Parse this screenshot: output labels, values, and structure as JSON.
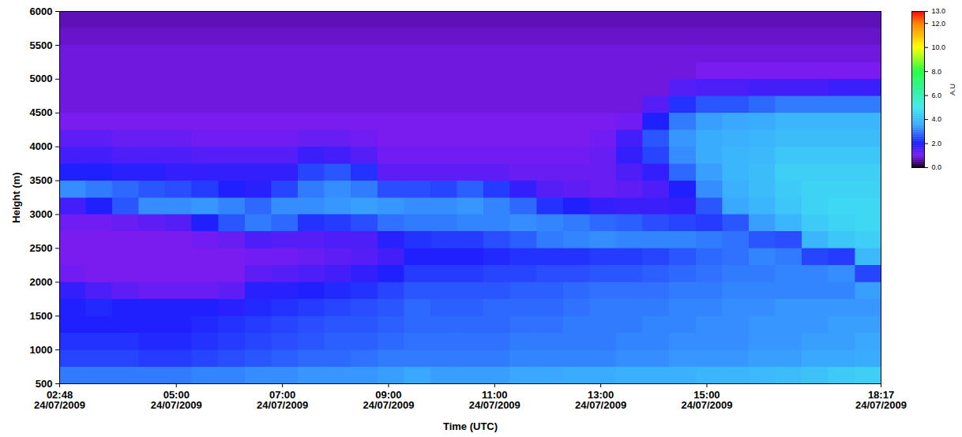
{
  "chart_data": {
    "type": "heatmap",
    "x_label": "Time (UTC)",
    "y_label": "Height (m)",
    "xlim": [
      "2009-07-24T02:48",
      "2009-07-24T18:17"
    ],
    "xticks": [
      {
        "value": "2009-07-24T02:48",
        "label": "02:48\n24/07/2009"
      },
      {
        "value": "2009-07-24T05:00",
        "label": "05:00\n24/07/2009"
      },
      {
        "value": "2009-07-24T07:00",
        "label": "07:00\n24/07/2009"
      },
      {
        "value": "2009-07-24T09:00",
        "label": "09:00\n24/07/2009"
      },
      {
        "value": "2009-07-24T11:00",
        "label": "11:00\n24/07/2009"
      },
      {
        "value": "2009-07-24T13:00",
        "label": "13:00\n24/07/2009"
      },
      {
        "value": "2009-07-24T15:00",
        "label": "15:00\n24/07/2009"
      },
      {
        "value": "2009-07-24T18:17",
        "label": "18:17\n24/07/2009"
      }
    ],
    "ylim": [
      500,
      6000
    ],
    "yticks": [
      500,
      1000,
      1500,
      2000,
      2500,
      3000,
      3500,
      4000,
      4500,
      5000,
      5500,
      6000
    ],
    "x": [
      "2009-07-24T02:48",
      "2009-07-24T03:18",
      "2009-07-24T03:48",
      "2009-07-24T04:18",
      "2009-07-24T04:48",
      "2009-07-24T05:18",
      "2009-07-24T05:48",
      "2009-07-24T06:18",
      "2009-07-24T06:48",
      "2009-07-24T07:18",
      "2009-07-24T07:48",
      "2009-07-24T08:18",
      "2009-07-24T08:48",
      "2009-07-24T09:18",
      "2009-07-24T09:48",
      "2009-07-24T10:18",
      "2009-07-24T10:48",
      "2009-07-24T11:18",
      "2009-07-24T11:48",
      "2009-07-24T12:18",
      "2009-07-24T12:48",
      "2009-07-24T13:18",
      "2009-07-24T13:48",
      "2009-07-24T14:18",
      "2009-07-24T14:48",
      "2009-07-24T15:18",
      "2009-07-24T15:48",
      "2009-07-24T16:18",
      "2009-07-24T16:48",
      "2009-07-24T17:18",
      "2009-07-24T17:48"
    ],
    "y": [
      500,
      750,
      1000,
      1250,
      1500,
      1750,
      2000,
      2250,
      2500,
      2750,
      3000,
      3250,
      3500,
      3750,
      4000,
      4250,
      4500,
      4750,
      5000,
      5250,
      5500,
      5750
    ],
    "cells": [
      [
        3.0,
        2.4,
        2.2,
        2.0,
        2.0,
        1.8,
        1.1,
        1.0,
        1.0,
        1.1,
        1.6,
        3.2,
        2.0,
        1.6,
        1.3,
        1.0,
        0.9,
        0.9,
        0.9,
        0.9,
        0.8,
        0.7
      ],
      [
        3.0,
        2.4,
        2.2,
        2.0,
        2.1,
        1.5,
        1.0,
        1.0,
        1.0,
        1.1,
        2.0,
        3.0,
        2.0,
        1.6,
        1.3,
        1.0,
        0.9,
        0.9,
        0.9,
        0.9,
        0.8,
        0.7
      ],
      [
        3.0,
        2.4,
        2.2,
        2.0,
        2.0,
        1.3,
        1.0,
        1.0,
        1.0,
        1.2,
        2.6,
        2.8,
        1.9,
        1.5,
        1.2,
        1.0,
        0.9,
        0.9,
        0.9,
        0.9,
        0.8,
        0.7
      ],
      [
        3.0,
        2.3,
        2.1,
        2.0,
        2.0,
        1.2,
        1.0,
        1.0,
        1.0,
        1.3,
        3.2,
        2.6,
        1.9,
        1.5,
        1.2,
        1.0,
        0.9,
        0.9,
        0.9,
        0.9,
        0.8,
        0.7
      ],
      [
        3.0,
        2.3,
        2.1,
        2.0,
        2.0,
        1.2,
        1.0,
        1.0,
        1.0,
        1.4,
        3.2,
        2.5,
        1.8,
        1.5,
        1.2,
        1.0,
        0.9,
        0.9,
        0.9,
        0.9,
        0.8,
        0.7
      ],
      [
        3.1,
        2.4,
        2.2,
        2.1,
        2.0,
        1.2,
        1.0,
        1.0,
        1.1,
        2.0,
        3.3,
        2.3,
        1.8,
        1.4,
        1.1,
        1.0,
        0.9,
        0.9,
        0.9,
        0.9,
        0.8,
        0.7
      ],
      [
        3.1,
        2.5,
        2.3,
        2.2,
        1.9,
        1.3,
        1.0,
        1.0,
        1.2,
        2.6,
        3.1,
        2.0,
        1.8,
        1.4,
        1.1,
        1.0,
        0.9,
        0.9,
        0.9,
        0.9,
        0.8,
        0.7
      ],
      [
        3.2,
        2.6,
        2.4,
        2.3,
        2.1,
        1.9,
        1.3,
        1.1,
        1.5,
        3.0,
        2.8,
        1.9,
        1.8,
        1.4,
        1.1,
        1.0,
        0.9,
        0.9,
        0.9,
        0.9,
        0.8,
        0.7
      ],
      [
        3.2,
        2.7,
        2.5,
        2.4,
        2.2,
        1.9,
        1.4,
        1.1,
        1.4,
        2.8,
        3.2,
        2.4,
        1.8,
        1.4,
        1.1,
        1.0,
        0.9,
        0.9,
        0.9,
        0.9,
        0.8,
        0.7
      ],
      [
        3.3,
        2.8,
        2.6,
        2.5,
        2.3,
        2.0,
        1.5,
        1.2,
        1.4,
        2.2,
        3.2,
        3.0,
        2.4,
        1.7,
        1.2,
        1.0,
        0.9,
        0.9,
        0.9,
        0.9,
        0.8,
        0.7
      ],
      [
        3.3,
        2.8,
        2.7,
        2.6,
        2.4,
        2.1,
        1.6,
        1.3,
        1.5,
        2.3,
        3.3,
        3.2,
        2.6,
        1.6,
        1.2,
        1.0,
        0.9,
        0.9,
        0.9,
        0.9,
        0.8,
        0.7
      ],
      [
        3.3,
        2.9,
        2.7,
        2.6,
        2.5,
        2.2,
        1.8,
        1.4,
        1.5,
        2.5,
        3.4,
        3.0,
        2.2,
        1.4,
        1.1,
        1.0,
        0.9,
        0.9,
        0.9,
        0.9,
        0.8,
        0.7
      ],
      [
        3.4,
        3.0,
        2.8,
        2.7,
        2.6,
        2.4,
        2.0,
        1.6,
        1.9,
        2.9,
        3.3,
        2.5,
        1.3,
        1.1,
        1.0,
        1.0,
        0.9,
        0.9,
        0.9,
        0.9,
        0.8,
        0.7
      ],
      [
        3.5,
        3.0,
        2.9,
        2.8,
        2.8,
        2.6,
        2.3,
        2.0,
        2.2,
        3.0,
        3.2,
        2.5,
        1.3,
        1.1,
        1.0,
        1.0,
        0.9,
        0.9,
        0.9,
        0.9,
        0.8,
        0.7
      ],
      [
        3.4,
        3.0,
        2.9,
        2.8,
        2.7,
        2.6,
        2.3,
        2.0,
        2.3,
        3.0,
        3.2,
        2.4,
        1.3,
        1.1,
        1.0,
        1.0,
        0.9,
        0.9,
        0.9,
        0.9,
        0.8,
        0.7
      ],
      [
        3.4,
        3.0,
        2.9,
        2.8,
        2.7,
        2.6,
        2.3,
        2.0,
        2.3,
        3.1,
        3.3,
        2.7,
        1.3,
        1.1,
        1.0,
        1.0,
        0.9,
        0.9,
        0.9,
        0.9,
        0.8,
        0.7
      ],
      [
        3.4,
        3.0,
        2.9,
        2.8,
        2.8,
        2.6,
        2.4,
        2.1,
        2.5,
        3.1,
        3.1,
        2.3,
        1.3,
        1.1,
        1.0,
        1.0,
        0.9,
        0.9,
        0.9,
        0.9,
        0.8,
        0.7
      ],
      [
        3.5,
        3.1,
        3.0,
        2.9,
        2.8,
        2.7,
        2.4,
        2.2,
        2.7,
        3.2,
        2.8,
        1.8,
        1.2,
        1.1,
        1.0,
        1.0,
        0.9,
        0.9,
        0.9,
        0.9,
        0.8,
        0.7
      ],
      [
        3.5,
        3.1,
        3.0,
        2.9,
        2.8,
        2.7,
        2.5,
        2.2,
        3.0,
        3.1,
        2.2,
        1.4,
        1.2,
        1.1,
        1.0,
        1.0,
        0.9,
        0.9,
        0.9,
        0.9,
        0.8,
        0.7
      ],
      [
        3.6,
        3.1,
        3.0,
        3.0,
        2.9,
        2.8,
        2.5,
        2.2,
        3.1,
        3.0,
        2.0,
        1.3,
        1.2,
        1.1,
        1.0,
        1.0,
        0.9,
        0.9,
        0.9,
        0.9,
        0.8,
        0.7
      ],
      [
        3.6,
        3.1,
        3.0,
        3.0,
        3.0,
        2.9,
        2.6,
        2.3,
        3.2,
        2.8,
        1.8,
        1.2,
        1.2,
        1.2,
        1.1,
        1.0,
        0.9,
        0.9,
        0.9,
        0.9,
        0.8,
        0.7
      ],
      [
        3.7,
        3.2,
        3.1,
        3.0,
        3.0,
        2.9,
        2.6,
        2.3,
        3.1,
        2.7,
        1.7,
        1.3,
        1.5,
        1.8,
        1.6,
        1.1,
        0.9,
        0.9,
        0.9,
        0.9,
        0.8,
        0.7
      ],
      [
        3.7,
        3.2,
        3.1,
        3.1,
        3.0,
        2.9,
        2.7,
        2.4,
        3.1,
        2.5,
        1.7,
        1.5,
        1.8,
        2.4,
        2.6,
        2.0,
        1.4,
        0.9,
        0.9,
        0.9,
        0.8,
        0.7
      ],
      [
        3.7,
        3.3,
        3.2,
        3.1,
        3.1,
        3.0,
        2.8,
        2.6,
        3.1,
        2.4,
        1.8,
        2.0,
        2.8,
        3.2,
        3.3,
        3.0,
        2.2,
        1.4,
        0.9,
        0.9,
        0.8,
        0.7
      ],
      [
        3.8,
        3.3,
        3.2,
        3.2,
        3.1,
        3.0,
        2.9,
        2.8,
        3.0,
        2.3,
        2.6,
        3.2,
        3.4,
        3.6,
        3.6,
        3.4,
        2.6,
        1.5,
        1.0,
        0.9,
        0.8,
        0.7
      ],
      [
        3.8,
        3.3,
        3.2,
        3.2,
        3.2,
        3.1,
        3.0,
        2.9,
        2.9,
        2.6,
        3.5,
        3.7,
        3.8,
        3.8,
        3.7,
        3.5,
        2.6,
        1.5,
        1.0,
        0.9,
        0.8,
        0.7
      ],
      [
        3.9,
        3.4,
        3.3,
        3.3,
        3.2,
        3.1,
        3.0,
        3.1,
        2.6,
        3.4,
        3.8,
        4.0,
        4.0,
        3.9,
        3.8,
        3.6,
        2.8,
        1.6,
        1.0,
        0.9,
        0.8,
        0.7
      ],
      [
        4.0,
        3.4,
        3.3,
        3.3,
        3.3,
        3.1,
        3.1,
        3.0,
        2.5,
        3.8,
        4.2,
        4.3,
        4.4,
        4.2,
        4.0,
        3.8,
        3.0,
        1.6,
        1.0,
        0.9,
        0.8,
        0.7
      ],
      [
        4.1,
        3.5,
        3.4,
        3.3,
        3.3,
        3.1,
        3.1,
        2.4,
        3.8,
        4.3,
        4.5,
        4.5,
        4.4,
        4.2,
        4.0,
        3.8,
        3.0,
        1.6,
        1.0,
        0.9,
        0.8,
        0.7
      ],
      [
        4.3,
        3.5,
        3.4,
        3.4,
        3.3,
        3.1,
        3.2,
        2.3,
        4.2,
        4.5,
        4.6,
        4.5,
        4.4,
        4.2,
        4.0,
        3.8,
        3.0,
        1.7,
        1.0,
        0.9,
        0.8,
        0.7
      ],
      [
        4.4,
        3.6,
        3.5,
        3.4,
        3.3,
        3.4,
        2.4,
        3.9,
        4.4,
        4.6,
        4.6,
        4.5,
        4.4,
        4.2,
        4.0,
        3.8,
        3.0,
        1.7,
        1.0,
        0.9,
        0.8,
        0.7
      ]
    ],
    "colorbar": {
      "label": "A.U",
      "range": [
        0,
        13
      ],
      "ticks": [
        {
          "value": 0,
          "label": "0.0"
        },
        {
          "value": 2,
          "label": "2.0"
        },
        {
          "value": 4,
          "label": "4.0"
        },
        {
          "value": 6,
          "label": "6.0"
        },
        {
          "value": 8,
          "label": "8.0"
        },
        {
          "value": 10,
          "label": "10.0"
        },
        {
          "value": 12,
          "label": "12.0"
        },
        {
          "value": 13,
          "label": "13.0"
        }
      ],
      "stops": [
        0,
        0.3,
        1,
        2,
        3.5,
        5,
        8,
        10,
        12,
        13
      ],
      "colors": [
        "#000000",
        "#3a0070",
        "#7a1cf0",
        "#2020ff",
        "#3aa8ff",
        "#40e8f0",
        "#20ff40",
        "#ffff00",
        "#ff8000",
        "#ff0000"
      ]
    }
  }
}
